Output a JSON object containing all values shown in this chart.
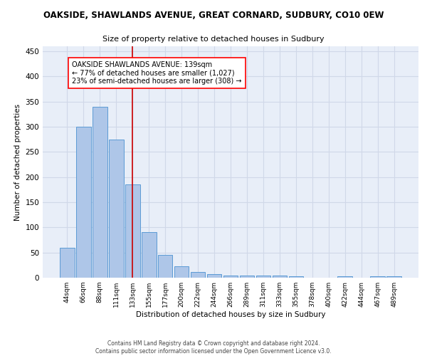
{
  "title": "OAKSIDE, SHAWLANDS AVENUE, GREAT CORNARD, SUDBURY, CO10 0EW",
  "subtitle": "Size of property relative to detached houses in Sudbury",
  "xlabel": "Distribution of detached houses by size in Sudbury",
  "ylabel": "Number of detached properties",
  "bar_labels": [
    "44sqm",
    "66sqm",
    "88sqm",
    "111sqm",
    "133sqm",
    "155sqm",
    "177sqm",
    "200sqm",
    "222sqm",
    "244sqm",
    "266sqm",
    "289sqm",
    "311sqm",
    "333sqm",
    "355sqm",
    "378sqm",
    "400sqm",
    "422sqm",
    "444sqm",
    "467sqm",
    "489sqm"
  ],
  "bar_values": [
    60,
    300,
    340,
    275,
    185,
    90,
    45,
    22,
    12,
    7,
    4,
    4,
    4,
    4,
    3,
    0,
    0,
    3,
    0,
    3,
    3
  ],
  "bar_color": "#aec6e8",
  "bar_edge_color": "#5b9bd5",
  "property_line_index": 4,
  "annotation_line1": "OAKSIDE SHAWLANDS AVENUE: 139sqm",
  "annotation_line2": "← 77% of detached houses are smaller (1,027)",
  "annotation_line3": "23% of semi-detached houses are larger (308) →",
  "red_line_color": "#cc0000",
  "grid_color": "#d0d8e8",
  "background_color": "#e8eef8",
  "ylim": [
    0,
    460
  ],
  "yticks": [
    0,
    50,
    100,
    150,
    200,
    250,
    300,
    350,
    400,
    450
  ],
  "footer1": "Contains HM Land Registry data © Crown copyright and database right 2024.",
  "footer2": "Contains public sector information licensed under the Open Government Licence v3.0."
}
